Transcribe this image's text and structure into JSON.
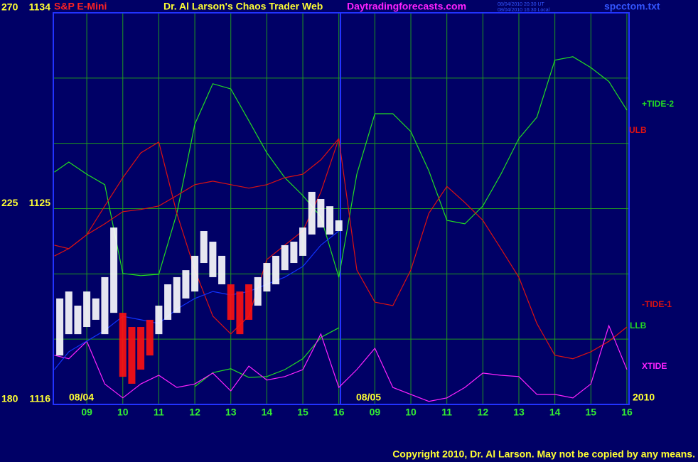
{
  "chart_data": {
    "type": "line",
    "title": "Dr. Al Larson's Chaos Trader Web",
    "subtitle": "S&P E-Mini",
    "source_url": "Daytradingforecasts.com",
    "timestamps": [
      "08/04/2010 20:30 UT",
      "08/04/2010 16:30 Local"
    ],
    "file_name": "spcctom.txt",
    "copyright": "Copyright 2010, Dr. Al Larson. May not be copied by any means.",
    "day_labels": [
      "08/04",
      "08/05"
    ],
    "year": "2010",
    "xlim": [
      8.07,
      24.06
    ],
    "xticks": [
      {
        "value": 9,
        "label": "09"
      },
      10,
      11,
      12,
      13,
      14,
      15,
      16,
      {
        "value": 17,
        "label": "09"
      },
      {
        "value": 18,
        "label": "10"
      },
      {
        "value": 19,
        "label": "11"
      },
      {
        "value": 20,
        "label": "12"
      },
      {
        "value": 21,
        "label": "13"
      },
      {
        "value": 22,
        "label": "14"
      },
      {
        "value": 23,
        "label": "15"
      },
      {
        "value": 24,
        "label": "16"
      }
    ],
    "ylim": [
      1116,
      1134
    ],
    "yticks": [
      1116,
      1125,
      1134
    ],
    "ygrid": [
      1119,
      1122,
      1128,
      1131
    ],
    "y2lim": [
      180,
      270
    ],
    "y2ticks": [
      180,
      225,
      270
    ],
    "grid": true,
    "x": [
      8.1,
      8.5,
      9,
      9.5,
      10,
      10.5,
      11,
      11.5,
      12,
      12.5,
      13,
      13.5,
      14,
      14.5,
      15,
      15.5,
      16,
      16.5,
      17,
      17.5,
      18,
      18.5,
      19,
      19.5,
      20,
      20.5,
      21,
      21.5,
      22,
      22.5,
      23,
      23.5,
      24
    ],
    "series": [
      {
        "name": "+TIDE-2",
        "color": "#22dd22",
        "axis": "y2",
        "values": [
          233.4,
          235.7,
          232.9,
          230.5,
          210.1,
          209.6,
          209.9,
          223.9,
          244.4,
          253.7,
          252.5,
          245.2,
          237.8,
          232.1,
          228.0,
          223.1,
          209.2,
          232.9,
          246.8,
          246.8,
          242.7,
          233.7,
          222.3,
          221.5,
          225.6,
          232.9,
          241.1,
          246.0,
          259.1,
          259.9,
          257.4,
          254.2,
          247.6
        ]
      },
      {
        "name": "ULB",
        "color": "#dd1111",
        "axis": "y2",
        "values": [
          216.6,
          215.8,
          219.0,
          221.5,
          224.3,
          224.8,
          225.6,
          228.0,
          230.5,
          231.3,
          230.5,
          229.7,
          230.5,
          232.1,
          232.9,
          236.2,
          241.1,
          null,
          null,
          null,
          null,
          null,
          null,
          null,
          null,
          null,
          null,
          null,
          null,
          null,
          null,
          null,
          null
        ]
      },
      {
        "name": "-TIDE-1",
        "color": "#dd1111",
        "axis": "y2",
        "values": [
          214.1,
          215.8,
          219.0,
          225.6,
          232.1,
          237.8,
          240.3,
          223.9,
          210.9,
          200.3,
          196.2,
          200.3,
          213.3,
          216.6,
          219.9,
          228.8,
          241.1,
          210.9,
          203.5,
          202.7,
          210.9,
          223.9,
          230.1,
          226.4,
          222.3,
          215.8,
          209.2,
          198.6,
          191.3,
          190.5,
          192.1,
          194.5,
          197.8
        ]
      },
      {
        "name": "LLB",
        "color": "#22dd22",
        "axis": "y2",
        "values": [
          null,
          null,
          null,
          null,
          null,
          null,
          null,
          null,
          184.1,
          187.3,
          188.2,
          186.2,
          186.4,
          188.0,
          190.5,
          195.4,
          197.6,
          null,
          null,
          null,
          null,
          null,
          null,
          null,
          null,
          null,
          null,
          null,
          null,
          null,
          null,
          null,
          null
        ]
      },
      {
        "name": "XTIDE",
        "color": "#ff22ff",
        "axis": "y2",
        "values": [
          191.3,
          190.5,
          194.5,
          184.7,
          181.5,
          184.7,
          186.7,
          183.9,
          184.7,
          187.2,
          183.1,
          188.8,
          185.6,
          186.4,
          188.0,
          196.2,
          183.9,
          188.0,
          192.9,
          183.9,
          182.3,
          180.7,
          181.5,
          183.9,
          187.2,
          186.7,
          186.4,
          182.3,
          182.3,
          181.5,
          184.7,
          198.1,
          188.0
        ]
      },
      {
        "color": "#1133ff",
        "values": [
          1117.6,
          1118.42,
          1118.91,
          1119.4,
          1120.05,
          1119.89,
          1119.72,
          1120.38,
          1120.87,
          1121.19,
          1121.03,
          1121.19,
          1121.52,
          1121.85,
          1122.34,
          1123.32,
          1123.97,
          null,
          null,
          null,
          null,
          null,
          null,
          null,
          null,
          null,
          null,
          null,
          null,
          null,
          null,
          null,
          null
        ]
      }
    ],
    "price_bars": {
      "x": [
        8.25,
        8.5,
        8.75,
        9,
        9.25,
        9.5,
        9.75,
        10,
        10.25,
        10.5,
        10.75,
        11,
        11.25,
        11.5,
        11.75,
        12,
        12.25,
        12.5,
        12.75,
        13,
        13.25,
        13.5,
        13.75,
        14,
        14.25,
        14.5,
        14.75,
        15,
        15.25,
        15.5,
        15.75,
        16
      ],
      "high": [
        1120.87,
        1121.19,
        1120.54,
        1121.19,
        1120.87,
        1121.85,
        1124.13,
        1120.21,
        1119.56,
        1119.56,
        1119.89,
        1120.54,
        1121.52,
        1121.85,
        1122.17,
        1122.83,
        1123.97,
        1123.48,
        1122.83,
        1121.52,
        1121.19,
        1121.52,
        1121.85,
        1122.5,
        1122.83,
        1123.32,
        1123.48,
        1124.13,
        1125.77,
        1125.44,
        1125.11,
        1124.46
      ],
      "low": [
        1118.25,
        1119.23,
        1119.23,
        1119.56,
        1119.89,
        1119.23,
        1120.21,
        1117.27,
        1116.95,
        1117.6,
        1118.25,
        1119.23,
        1119.89,
        1120.21,
        1120.87,
        1121.19,
        1122.5,
        1121.85,
        1121.52,
        1119.89,
        1119.23,
        1119.89,
        1120.54,
        1121.19,
        1121.52,
        1122.17,
        1122.5,
        1122.83,
        1123.81,
        1124.13,
        1123.81,
        1123.97
      ],
      "colors": [
        "#ffffff",
        "#ffffff",
        "#ffffff",
        "#ffffff",
        "#ffffff",
        "#ffffff",
        "#ffffff",
        "#ff1111",
        "#ff1111",
        "#ff1111",
        "#ff1111",
        "#ffffff",
        "#ffffff",
        "#ffffff",
        "#ffffff",
        "#ffffff",
        "#ffffff",
        "#ffffff",
        "#ffffff",
        "#ff1111",
        "#ff1111",
        "#ff1111",
        "#ffffff",
        "#ffffff",
        "#ffffff",
        "#ffffff",
        "#ffffff",
        "#ffffff",
        "#ffffff",
        "#ffffff",
        "#ffffff",
        "#ffffff"
      ]
    }
  }
}
